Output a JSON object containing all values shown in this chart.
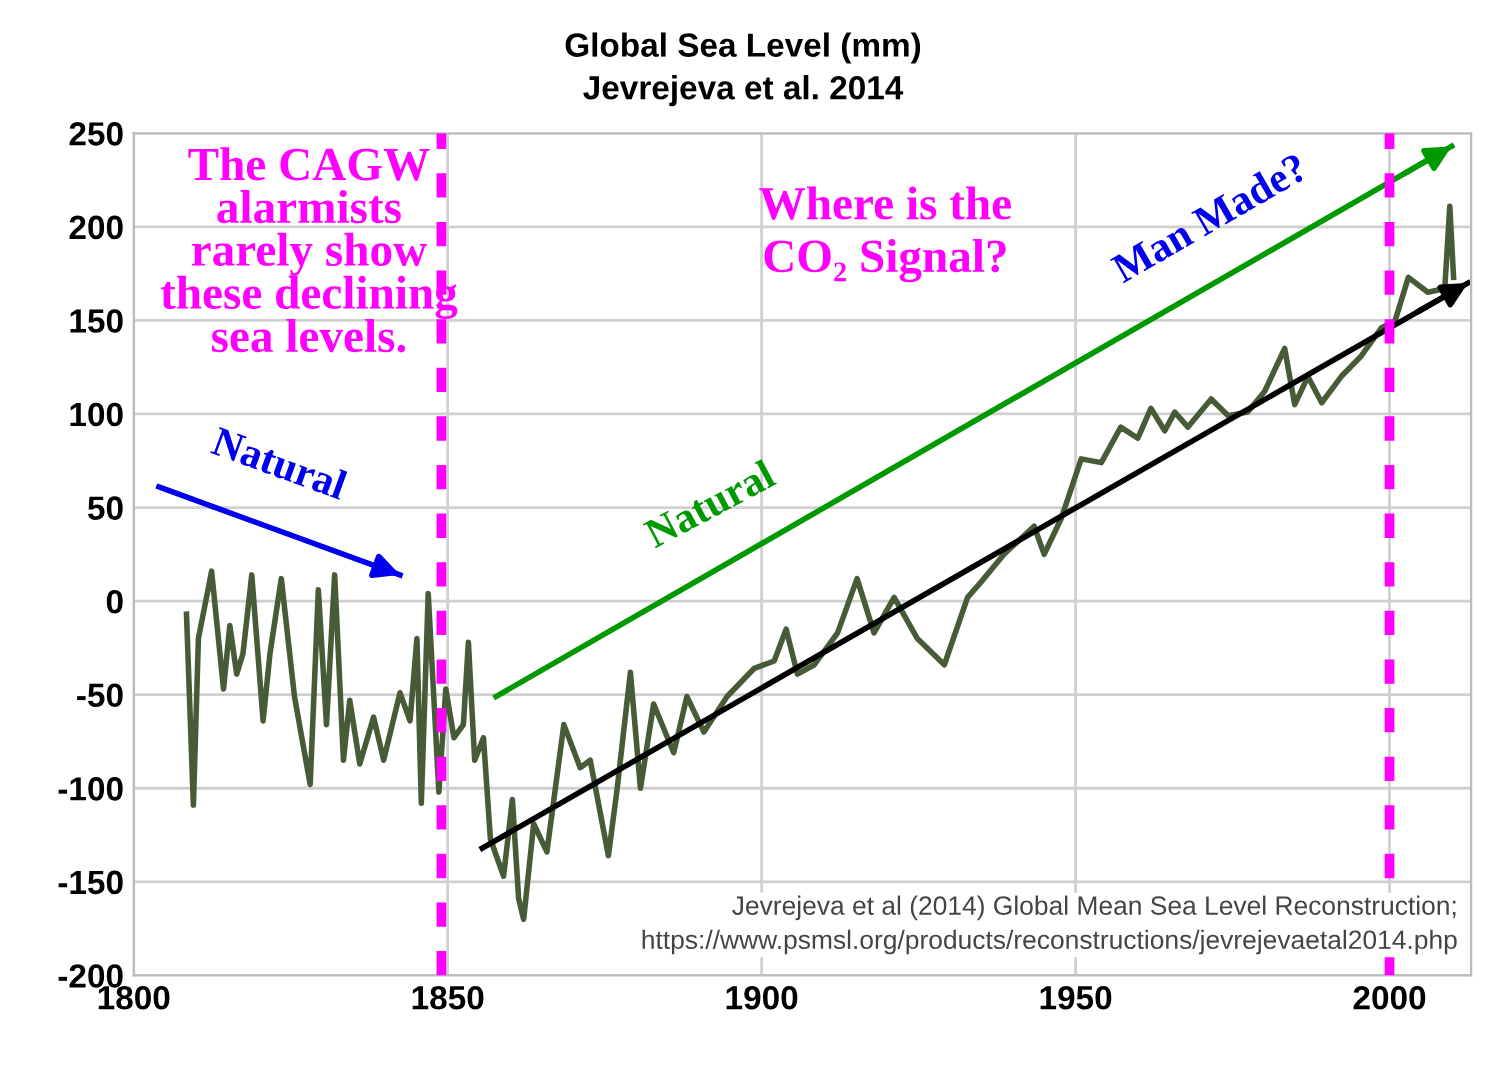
{
  "chart_data": {
    "type": "line",
    "title": "Global Sea Level (mm)",
    "subtitle": "Jevrejeva et al. 2014",
    "xlim": [
      1800,
      2013
    ],
    "ylim": [
      -200,
      250
    ],
    "xticks": [
      1800,
      1850,
      1900,
      1950,
      2000
    ],
    "yticks": [
      -200,
      -150,
      -100,
      -50,
      0,
      50,
      100,
      150,
      200,
      250
    ],
    "grid": true,
    "line_style": "solid",
    "marker": "none",
    "series": [
      {
        "color": "#475b37",
        "x": [
          1808.4,
          1809.5,
          1810.3,
          1812.4,
          1814.3,
          1815.3,
          1816.4,
          1817.4,
          1818.8,
          1820.6,
          1821.7,
          1823.5,
          1825.6,
          1828.1,
          1829.4,
          1830.7,
          1832,
          1833.4,
          1834.4,
          1836,
          1838.2,
          1839.8,
          1842.4,
          1844,
          1845.1,
          1845.8,
          1846.9,
          1848.6,
          1849.7,
          1851,
          1852.5,
          1853.3,
          1854.3,
          1855.7,
          1856.8,
          1858.9,
          1860.3,
          1861.3,
          1862.1,
          1863.7,
          1865.8,
          1868.5,
          1871.1,
          1872.7,
          1875.6,
          1877,
          1879.1,
          1880.7,
          1882.8,
          1886,
          1888.1,
          1890.8,
          1894.5,
          1898.8,
          1902,
          1903.9,
          1905.7,
          1908.4,
          1912.1,
          1915.2,
          1917.9,
          1921.1,
          1924.8,
          1929.1,
          1932.8,
          1934.9,
          1938.6,
          1943.4,
          1945,
          1947.7,
          1950.9,
          1954.1,
          1957.2,
          1959.9,
          1962,
          1964.2,
          1965.8,
          1967.9,
          1971.6,
          1974.3,
          1977.4,
          1980.1,
          1983.3,
          1984.9,
          1987,
          1989.2,
          1992.3,
          1995.5,
          1998.7,
          2000.9,
          2003,
          2006.1,
          2008.8,
          2009.6,
          2010.2
        ],
        "values": [
          -7,
          -109,
          -20,
          16,
          -47,
          -13,
          -39,
          -28,
          14,
          -64,
          -28,
          12,
          -51,
          -98,
          6,
          -66,
          14,
          -85,
          -53,
          -87,
          -62,
          -85,
          -49,
          -64,
          -20,
          -108,
          4,
          -102,
          -47,
          -73,
          -66,
          -22,
          -85,
          -73,
          -127,
          -147,
          -106,
          -159,
          -170,
          -119,
          -134,
          -66,
          -89,
          -85,
          -136,
          -100,
          -38,
          -100,
          -55,
          -81,
          -51,
          -70,
          -51,
          -36,
          -32,
          -15,
          -39,
          -34,
          -17,
          12,
          -17,
          2,
          -20,
          -34,
          2,
          10,
          25,
          40,
          25,
          44,
          76,
          74,
          93,
          87,
          103,
          91,
          101,
          93,
          108,
          99,
          101,
          112,
          135,
          105,
          120,
          106,
          120,
          131,
          146,
          150,
          173,
          165,
          167,
          211,
          173
        ]
      },
      {
        "color": "#000000",
        "x": [
          1855.5,
          2012.5
        ],
        "values": [
          -132,
          170
        ]
      },
      {
        "color": "#0000ee",
        "x": [
          1804,
          1842.4
        ],
        "values": [
          61,
          14
        ]
      },
      {
        "color": "#009900",
        "x": [
          1857.7,
          2009.9
        ],
        "values": [
          -51,
          243
        ]
      }
    ],
    "ref_lines": [
      {
        "axis": "x",
        "value": 1849,
        "color": "#ff00ff",
        "line_style": "dashed"
      },
      {
        "axis": "x",
        "value": 2000,
        "color": "#ff00ff",
        "line_style": "dashed"
      }
    ],
    "annotations": [
      "The CAGW\nalarmists\nrarely show\nthese declining\nsea levels.",
      "Where is the\nCO₂ Signal?",
      "Natural",
      "Natural",
      "Man Made?",
      "Jevrejeva et al (2014) Global Mean Sea Level Reconstruction;\nhttps://www.psmsl.org/products/reconstructions/jevrejevaetal2014.php"
    ]
  }
}
